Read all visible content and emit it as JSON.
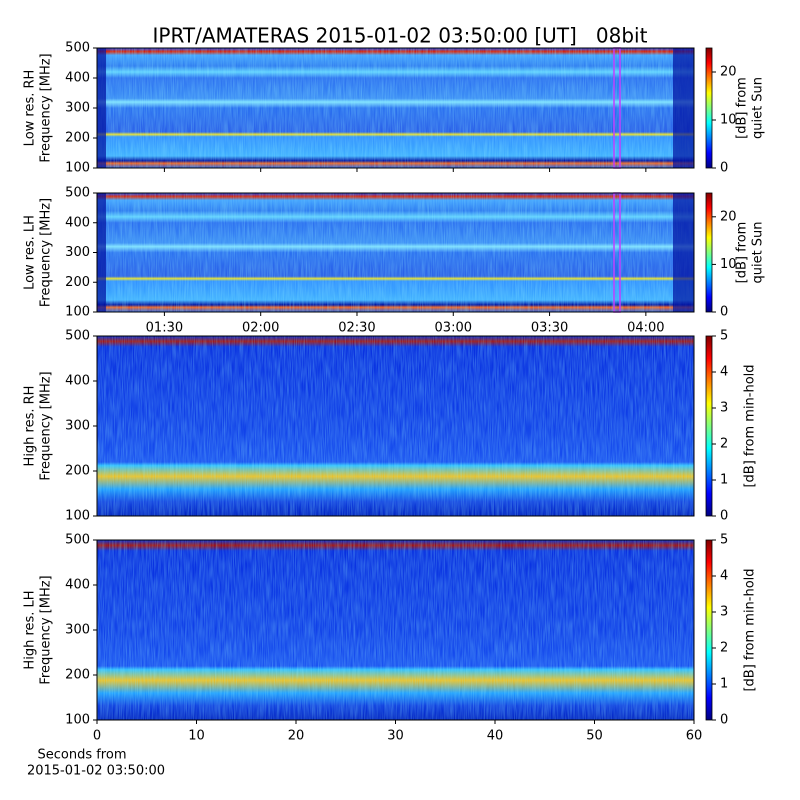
{
  "chart_data": [
    {
      "type": "spectrogram",
      "title": "IPRT/AMATERAS 2015-01-02 03:50:00 [UT]   08bit",
      "ylabel": [
        "Low res. RH",
        "Frequency [MHz]"
      ],
      "ylim": [
        100,
        500
      ],
      "yticks": [
        100,
        200,
        300,
        400,
        500
      ],
      "colormap": "jet",
      "colorbar": {
        "label": [
          "[dB] from",
          "quiet Sun"
        ],
        "lim": [
          0,
          25
        ],
        "ticks": [
          0,
          10,
          20
        ]
      }
    },
    {
      "type": "spectrogram",
      "ylabel": [
        "Low res. LH",
        "Frequency [MHz]"
      ],
      "ylim": [
        100,
        500
      ],
      "yticks": [
        100,
        200,
        300,
        400,
        500
      ],
      "xlim": [
        "01:09",
        "04:15"
      ],
      "xticks": [
        "01:30",
        "02:00",
        "02:30",
        "03:00",
        "03:30",
        "04:00"
      ],
      "colormap": "jet",
      "colorbar": {
        "label": [
          "[dB] from",
          "quiet Sun"
        ],
        "lim": [
          0,
          25
        ],
        "ticks": [
          0,
          10,
          20
        ]
      }
    },
    {
      "type": "spectrogram",
      "ylabel": [
        "High res. RH",
        "Frequency [MHz]"
      ],
      "ylim": [
        100,
        500
      ],
      "yticks": [
        100,
        200,
        300,
        400,
        500
      ],
      "colormap": "jet",
      "colorbar": {
        "label": [
          "[dB] from min-hold"
        ],
        "lim": [
          0,
          5
        ],
        "ticks": [
          0,
          1,
          2,
          3,
          4,
          5
        ]
      }
    },
    {
      "type": "spectrogram",
      "ylabel": [
        "High res. LH",
        "Frequency [MHz]"
      ],
      "ylim": [
        100,
        500
      ],
      "yticks": [
        100,
        200,
        300,
        400,
        500
      ],
      "xlabel": [
        "Seconds from",
        "2015-01-02 03:50:00"
      ],
      "xlim": [
        0,
        60
      ],
      "xticks": [
        0,
        10,
        20,
        30,
        40,
        50,
        60
      ],
      "colormap": "jet",
      "colorbar": {
        "label": [
          "[dB] from min-hold"
        ],
        "lim": [
          0,
          5
        ],
        "ticks": [
          0,
          1,
          2,
          3,
          4,
          5
        ]
      }
    }
  ]
}
